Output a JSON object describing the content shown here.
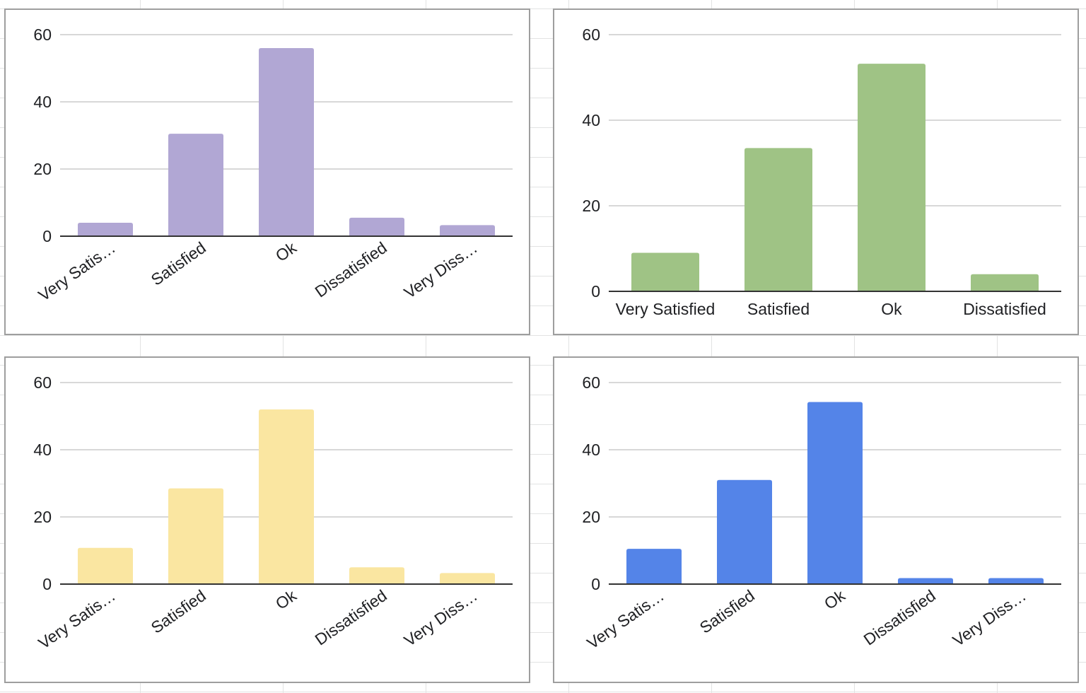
{
  "colors": {
    "gridline": "#cccccc",
    "baseline": "#333333",
    "text": "#202124"
  },
  "chart_data": [
    {
      "type": "bar",
      "position": "top-left",
      "categories": [
        "Very Satisfied",
        "Satisfied",
        "Ok",
        "Dissatisfied",
        "Very Dissatisfied"
      ],
      "tick_labels": [
        "Very Satis…",
        "Satisfied",
        "Ok",
        "Dissatisfied",
        "Very Diss…"
      ],
      "values": [
        4,
        30.5,
        56,
        5.5,
        3.3
      ],
      "ylim": [
        0,
        60
      ],
      "yticks": [
        "0",
        "20",
        "40",
        "60"
      ],
      "rotated_labels": true,
      "color": "#b1a7d4",
      "title": "",
      "xlabel": "",
      "ylabel": "",
      "grid": true,
      "legend": "none"
    },
    {
      "type": "bar",
      "position": "top-right",
      "categories": [
        "Very Satisfied",
        "Satisfied",
        "Ok",
        "Dissatisfied"
      ],
      "tick_labels": [
        "Very Satisfied",
        "Satisfied",
        "Ok",
        "Dissatisfied"
      ],
      "values": [
        9,
        33.5,
        53.2,
        4
      ],
      "ylim": [
        0,
        60
      ],
      "yticks": [
        "0",
        "20",
        "40",
        "60"
      ],
      "rotated_labels": false,
      "color": "#9fc385",
      "title": "",
      "xlabel": "",
      "ylabel": "",
      "grid": true,
      "legend": "none"
    },
    {
      "type": "bar",
      "position": "bottom-left",
      "categories": [
        "Very Satisfied",
        "Satisfied",
        "Ok",
        "Dissatisfied",
        "Very Dissatisfied"
      ],
      "tick_labels": [
        "Very Satis…",
        "Satisfied",
        "Ok",
        "Dissatisfied",
        "Very Diss…"
      ],
      "values": [
        10.8,
        28.5,
        52,
        5,
        3.3
      ],
      "ylim": [
        0,
        60
      ],
      "yticks": [
        "0",
        "20",
        "40",
        "60"
      ],
      "rotated_labels": true,
      "color": "#fae6a1",
      "title": "",
      "xlabel": "",
      "ylabel": "",
      "grid": true,
      "legend": "none"
    },
    {
      "type": "bar",
      "position": "bottom-right",
      "categories": [
        "Very Satisfied",
        "Satisfied",
        "Ok",
        "Dissatisfied",
        "Very Dissatisfied"
      ],
      "tick_labels": [
        "Very Satis…",
        "Satisfied",
        "Ok",
        "Dissatisfied",
        "Very Diss…"
      ],
      "values": [
        10.5,
        31,
        54.2,
        1.8,
        1.8
      ],
      "ylim": [
        0,
        60
      ],
      "yticks": [
        "0",
        "20",
        "40",
        "60"
      ],
      "rotated_labels": true,
      "color": "#5484e8",
      "title": "",
      "xlabel": "",
      "ylabel": "",
      "grid": true,
      "legend": "none"
    }
  ]
}
